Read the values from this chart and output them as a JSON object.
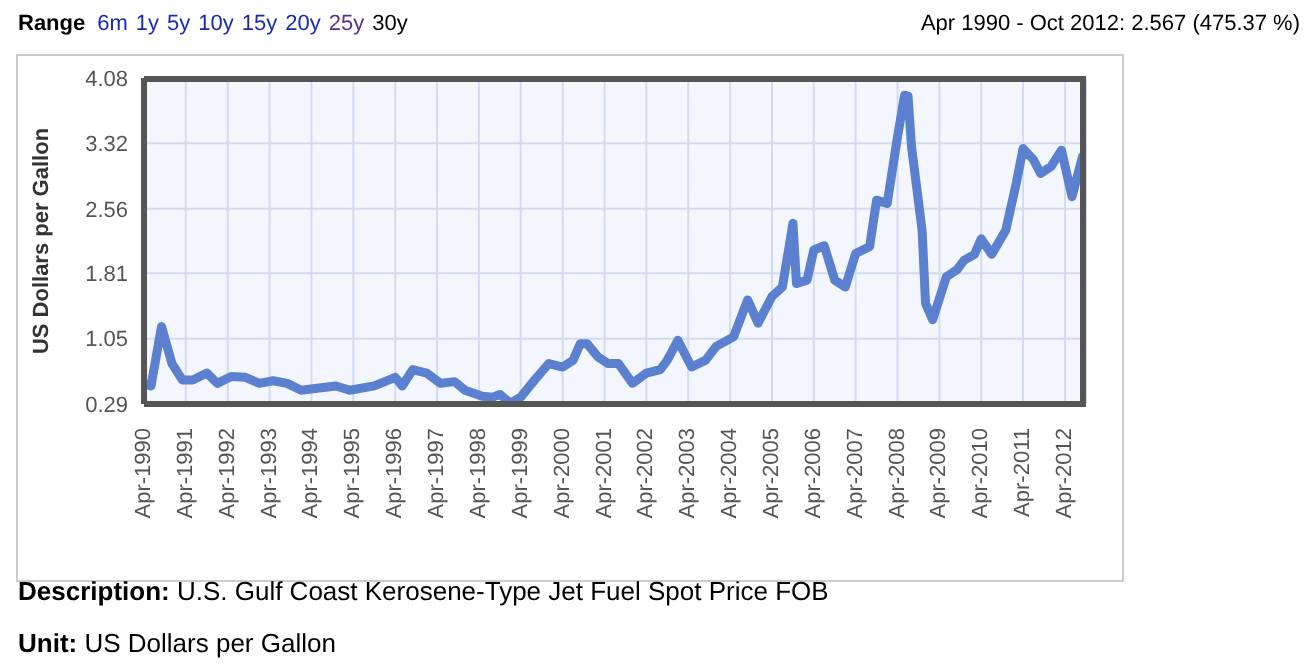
{
  "chart_data": {
    "type": "line",
    "ylabel": "US Dollars per Gallon",
    "annotations": [
      "Range",
      "6m",
      "1y",
      "5y",
      "10y",
      "15y",
      "20y",
      "25y",
      "30y",
      "Apr 1990 - Oct 2012: 2.567 (475.37 %)",
      "Description: U.S. Gulf Coast Kerosene-Type Jet Fuel Spot Price FOB",
      "Unit: US Dollars per Gallon"
    ],
    "x": [
      "1990-04",
      "1990-06",
      "1990-09",
      "1990-12",
      "1991-03",
      "1991-06",
      "1991-10",
      "1992-01",
      "1992-05",
      "1992-09",
      "1993-01",
      "1993-05",
      "1993-09",
      "1994-01",
      "1994-05",
      "1994-11",
      "1995-03",
      "1995-10",
      "1996-04",
      "1996-06",
      "1996-09",
      "1997-01",
      "1997-05",
      "1997-09",
      "1997-12",
      "1998-05",
      "1998-08",
      "1998-10",
      "1999-01",
      "1999-04",
      "1999-08",
      "1999-12",
      "2000-04",
      "2000-07",
      "2000-09",
      "2000-11",
      "2001-02",
      "2001-05",
      "2001-08",
      "2001-12",
      "2002-04",
      "2002-08",
      "2002-10",
      "2003-01",
      "2003-05",
      "2003-09",
      "2003-12",
      "2004-05",
      "2004-09",
      "2004-12",
      "2005-04",
      "2005-07",
      "2005-10",
      "2005-11",
      "2006-02",
      "2006-04",
      "2006-07",
      "2006-10",
      "2007-01",
      "2007-04",
      "2007-08",
      "2007-10",
      "2008-01",
      "2008-04",
      "2008-06",
      "2008-07",
      "2008-08",
      "2008-11",
      "2008-12",
      "2009-02",
      "2009-06",
      "2009-09",
      "2009-11",
      "2010-02",
      "2010-04",
      "2010-07",
      "2010-11",
      "2011-02",
      "2011-04",
      "2011-07",
      "2011-09",
      "2011-12",
      "2012-03",
      "2012-06",
      "2012-09",
      "2012-10"
    ],
    "series": [
      {
        "color": "#5b80d0",
        "values": [
          0.53,
          0.5,
          1.19,
          0.76,
          0.57,
          0.57,
          0.65,
          0.53,
          0.61,
          0.6,
          0.53,
          0.56,
          0.53,
          0.45,
          0.47,
          0.5,
          0.45,
          0.5,
          0.6,
          0.5,
          0.69,
          0.65,
          0.53,
          0.55,
          0.45,
          0.38,
          0.37,
          0.4,
          0.3,
          0.37,
          0.57,
          0.76,
          0.72,
          0.8,
          0.99,
          0.99,
          0.84,
          0.76,
          0.76,
          0.53,
          0.65,
          0.69,
          0.8,
          1.03,
          0.72,
          0.8,
          0.96,
          1.07,
          1.5,
          1.23,
          1.54,
          1.65,
          2.39,
          1.69,
          1.73,
          2.08,
          2.13,
          1.73,
          1.65,
          2.04,
          2.12,
          2.66,
          2.62,
          3.4,
          3.88,
          3.87,
          3.28,
          2.31,
          1.46,
          1.27,
          1.77,
          1.85,
          1.96,
          2.03,
          2.21,
          2.03,
          2.31,
          2.86,
          3.26,
          3.13,
          2.97,
          3.05,
          3.24,
          2.7,
          3.17,
          3.13
        ]
      }
    ],
    "xlim": [
      "1990-04",
      "2012-10"
    ],
    "xticks": [
      {
        "value": "1990-04",
        "label": "Apr-1990"
      },
      {
        "value": "1991-04",
        "label": "Apr-1991"
      },
      {
        "value": "1992-04",
        "label": "Apr-1992"
      },
      {
        "value": "1993-04",
        "label": "Apr-1993"
      },
      {
        "value": "1994-04",
        "label": "Apr-1994"
      },
      {
        "value": "1995-04",
        "label": "Apr-1995"
      },
      {
        "value": "1996-04",
        "label": "Apr-1996"
      },
      {
        "value": "1997-04",
        "label": "Apr-1997"
      },
      {
        "value": "1998-04",
        "label": "Apr-1998"
      },
      {
        "value": "1999-04",
        "label": "Apr-1999"
      },
      {
        "value": "2000-04",
        "label": "Apr-2000"
      },
      {
        "value": "2001-04",
        "label": "Apr-2001"
      },
      {
        "value": "2002-04",
        "label": "Apr-2002"
      },
      {
        "value": "2003-04",
        "label": "Apr-2003"
      },
      {
        "value": "2004-04",
        "label": "Apr-2004"
      },
      {
        "value": "2005-04",
        "label": "Apr-2005"
      },
      {
        "value": "2006-04",
        "label": "Apr-2006"
      },
      {
        "value": "2007-04",
        "label": "Apr-2007"
      },
      {
        "value": "2008-04",
        "label": "Apr-2008"
      },
      {
        "value": "2009-04",
        "label": "Apr-2009"
      },
      {
        "value": "2010-04",
        "label": "Apr-2010"
      },
      {
        "value": "2011-04",
        "label": "Apr-2011"
      },
      {
        "value": "2012-04",
        "label": "Apr-2012"
      }
    ],
    "ylim": [
      0.29,
      4.08
    ],
    "yticks": [
      0.29,
      1.05,
      1.81,
      2.56,
      3.32,
      4.08
    ],
    "grid": true,
    "marker": "none",
    "line_style": "solid"
  }
}
